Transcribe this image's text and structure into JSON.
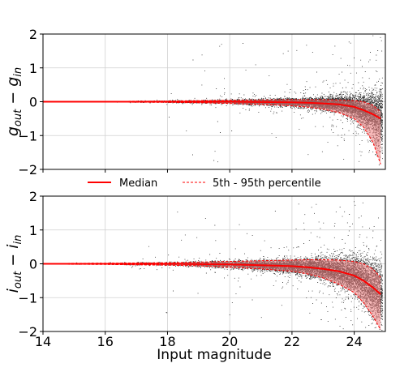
{
  "legend": {
    "median": "Median",
    "percentile": "5th - 95th percentile"
  },
  "colors": {
    "median": "#ff0000",
    "band": "#f08080",
    "scatter": "#000000",
    "grid": "#d0d0d0"
  },
  "chart_data": [
    {
      "type": "scatter",
      "ylabel": "g_out − g_in",
      "ylabel_parts": {
        "a": "g",
        "a_sub": "out",
        "op": " − ",
        "b": "g",
        "b_sub": "in"
      },
      "xlim": [
        14,
        25
      ],
      "ylim": [
        -2,
        2
      ],
      "xticks": [
        14,
        16,
        18,
        20,
        22,
        24
      ],
      "yticks": [
        -2,
        -1,
        0,
        1,
        2
      ],
      "grid": true,
      "series": [
        {
          "name": "Median",
          "x": [
            14,
            16,
            18,
            19,
            20,
            21,
            22,
            22.5,
            23,
            23.5,
            24,
            24.3,
            24.6,
            24.85
          ],
          "y": [
            0,
            0,
            0,
            0,
            0,
            -0.01,
            -0.02,
            -0.03,
            -0.05,
            -0.08,
            -0.15,
            -0.25,
            -0.37,
            -0.5
          ]
        },
        {
          "name": "5th percentile",
          "x": [
            14,
            16,
            18,
            19,
            20,
            21,
            22,
            22.5,
            23,
            23.5,
            24,
            24.3,
            24.6,
            24.85
          ],
          "y": [
            -0.01,
            -0.01,
            -0.02,
            -0.03,
            -0.05,
            -0.08,
            -0.12,
            -0.16,
            -0.22,
            -0.32,
            -0.5,
            -0.75,
            -1.2,
            -1.85
          ]
        },
        {
          "name": "95th percentile",
          "x": [
            14,
            16,
            18,
            19,
            20,
            21,
            22,
            22.5,
            23,
            23.5,
            24,
            24.3,
            24.6,
            24.85
          ],
          "y": [
            0.01,
            0.01,
            0.02,
            0.03,
            0.04,
            0.05,
            0.06,
            0.06,
            0.06,
            0.05,
            0.03,
            0.0,
            -0.1,
            -0.3
          ]
        }
      ]
    },
    {
      "type": "scatter",
      "xlabel": "Input magnitude",
      "ylabel": "i_out − i_in",
      "ylabel_parts": {
        "a": "i",
        "a_sub": "out",
        "op": " − ",
        "b": "i",
        "b_sub": "in"
      },
      "xlim": [
        14,
        25
      ],
      "ylim": [
        -2,
        2
      ],
      "xticks": [
        14,
        16,
        18,
        20,
        22,
        24
      ],
      "yticks": [
        -2,
        -1,
        0,
        1,
        2
      ],
      "grid": true,
      "series": [
        {
          "name": "Median",
          "x": [
            14,
            16,
            18,
            19,
            20,
            21,
            22,
            22.5,
            23,
            23.5,
            24,
            24.3,
            24.6,
            24.85
          ],
          "y": [
            0,
            0,
            0,
            -0.01,
            -0.02,
            -0.04,
            -0.07,
            -0.1,
            -0.15,
            -0.22,
            -0.35,
            -0.5,
            -0.7,
            -0.9
          ]
        },
        {
          "name": "5th percentile",
          "x": [
            14,
            16,
            18,
            19,
            20,
            21,
            22,
            22.5,
            23,
            23.5,
            24,
            24.3,
            24.6,
            24.85
          ],
          "y": [
            -0.01,
            -0.02,
            -0.04,
            -0.06,
            -0.1,
            -0.15,
            -0.22,
            -0.3,
            -0.42,
            -0.6,
            -0.85,
            -1.15,
            -1.55,
            -1.95
          ]
        },
        {
          "name": "95th percentile",
          "x": [
            14,
            16,
            18,
            19,
            20,
            21,
            22,
            22.5,
            23,
            23.5,
            24,
            24.3,
            24.6,
            24.85
          ],
          "y": [
            0.01,
            0.02,
            0.03,
            0.05,
            0.07,
            0.09,
            0.11,
            0.12,
            0.12,
            0.11,
            0.07,
            0.0,
            -0.15,
            -0.4
          ]
        }
      ]
    }
  ]
}
